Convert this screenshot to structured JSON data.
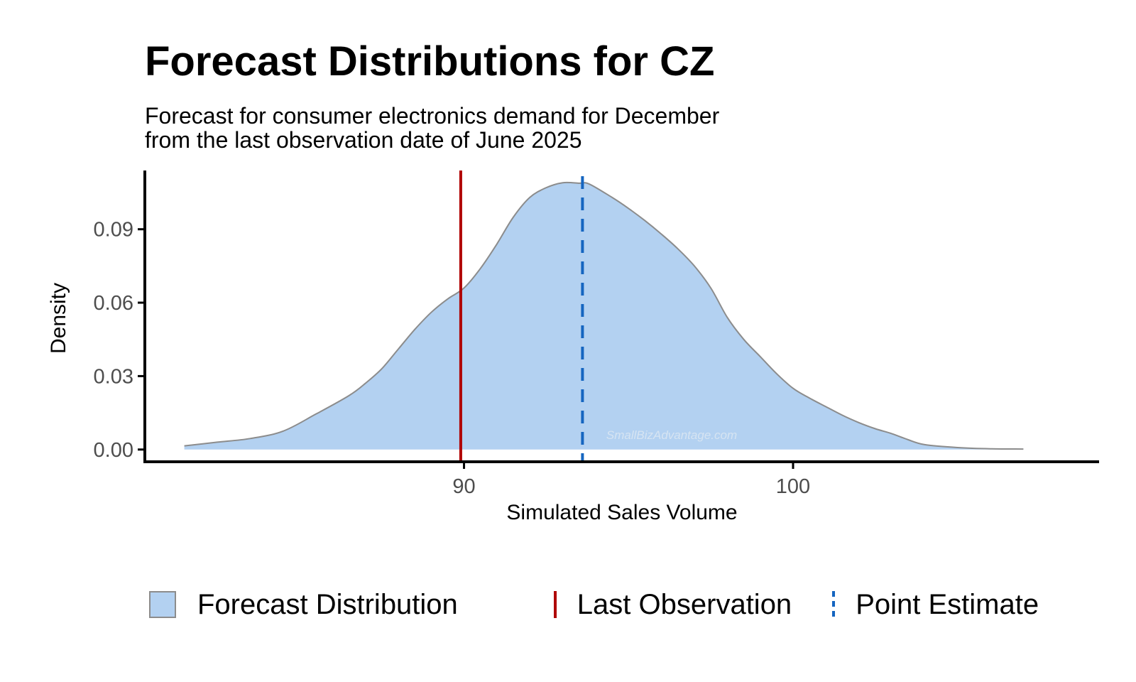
{
  "chart_data": {
    "type": "area",
    "title": "Forecast Distributions for CZ",
    "subtitle": [
      "Forecast for consumer electronics demand for December",
      "from the last observation date of June 2025"
    ],
    "xlabel": "Simulated Sales Volume",
    "ylabel": "Density",
    "xlim": [
      80.3,
      109.3
    ],
    "ylim": [
      -0.005,
      0.114
    ],
    "x_ticks": [
      90,
      100
    ],
    "y_ticks": [
      0.0,
      0.03,
      0.06,
      0.09
    ],
    "y_tick_labels": [
      "0.00",
      "0.03",
      "0.06",
      "0.09"
    ],
    "grid": false,
    "legend_position": "bottom",
    "series": [
      {
        "name": "Forecast Distribution",
        "x": [
          81.5,
          82.5,
          83.5,
          84.5,
          85.5,
          86.5,
          87.0,
          87.5,
          88.0,
          88.5,
          89.0,
          89.5,
          90.0,
          90.5,
          91.0,
          91.5,
          92.0,
          92.5,
          93.0,
          93.5,
          93.8,
          94.5,
          95.0,
          95.5,
          96.0,
          96.5,
          97.0,
          97.5,
          98.0,
          98.5,
          99.0,
          99.5,
          100.0,
          100.5,
          101.0,
          101.5,
          102.0,
          102.5,
          103.0,
          103.5,
          104.0,
          105.0,
          106.0,
          107.0
        ],
        "y": [
          0.0015,
          0.003,
          0.0045,
          0.0075,
          0.0145,
          0.022,
          0.027,
          0.033,
          0.041,
          0.049,
          0.056,
          0.0615,
          0.066,
          0.074,
          0.084,
          0.095,
          0.103,
          0.107,
          0.109,
          0.1088,
          0.1085,
          0.103,
          0.0985,
          0.0935,
          0.088,
          0.082,
          0.075,
          0.066,
          0.054,
          0.045,
          0.038,
          0.031,
          0.025,
          0.021,
          0.0175,
          0.014,
          0.011,
          0.0085,
          0.0065,
          0.004,
          0.002,
          0.0008,
          0.0003,
          0.0002
        ]
      }
    ],
    "reference_lines": [
      {
        "name": "Last Observation",
        "x": 89.9,
        "color": "#b00000",
        "style": "solid"
      },
      {
        "name": "Point Estimate",
        "x": 93.6,
        "color": "#1565c0",
        "style": "dashed"
      }
    ],
    "watermark": "SmallBizAdvantage.com",
    "colors": {
      "fill": "#b3d1f1",
      "outline": "#8c8c8c",
      "last_observation": "#b00000",
      "point_estimate": "#1565c0"
    }
  },
  "legend": {
    "items": [
      "Forecast Distribution",
      "Last Observation",
      "Point Estimate"
    ]
  }
}
